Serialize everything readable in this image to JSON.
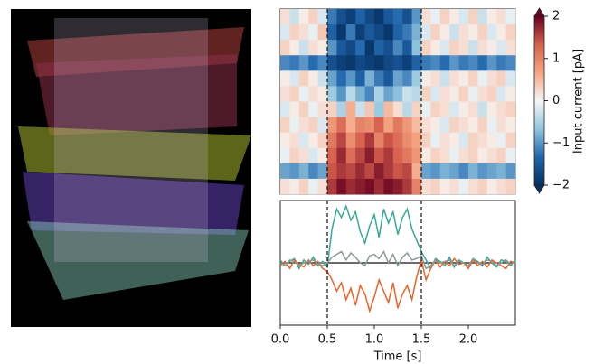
{
  "chart_data": [
    {
      "type": "heatmap",
      "xlim": [
        0,
        2.5
      ],
      "vlines": [
        0.5,
        1.5
      ],
      "cmap": [
        "#053061",
        "#2166ac",
        "#92c5de",
        "#f7f7f7",
        "#f4a582",
        "#d6604d",
        "#67001f"
      ],
      "clim": [
        -2,
        2
      ],
      "cticks": [
        {
          "value": -2,
          "label": "−2"
        },
        {
          "value": -1,
          "label": "−1"
        },
        0,
        1,
        2
      ],
      "clabel": "Input current [pA]",
      "z": [
        [
          0.2,
          -0.3,
          0.1,
          0.3,
          -0.2,
          -1.2,
          -1.6,
          -1.8,
          -1.4,
          -1.7,
          -1.9,
          -1.5,
          -1.3,
          -1.6,
          -1.0,
          0.2,
          -0.1,
          0.3,
          0.1,
          -0.2,
          0.3,
          -0.3,
          0.1,
          0.2,
          -0.1
        ],
        [
          -0.2,
          0.3,
          0.2,
          -0.1,
          0.4,
          -1.4,
          -1.9,
          -1.2,
          -1.8,
          -1.5,
          -1.7,
          -1.9,
          -1.4,
          -1.2,
          -0.8,
          -0.2,
          0.3,
          0.1,
          -0.3,
          0.2,
          0.1,
          0.3,
          -0.2,
          0.1,
          0.3
        ],
        [
          0.3,
          0.1,
          -0.3,
          0.2,
          0.1,
          -1.0,
          -1.5,
          -1.7,
          -1.3,
          -1.9,
          -1.4,
          -1.6,
          -1.1,
          -1.5,
          -0.7,
          0.3,
          0.1,
          -0.2,
          0.3,
          0.2,
          -0.3,
          0.2,
          0.1,
          -0.2,
          0.2
        ],
        [
          -1.1,
          -1.2,
          -1.0,
          -1.3,
          -1.1,
          -1.6,
          -1.8,
          -1.9,
          -1.7,
          -1.8,
          -1.9,
          -1.7,
          -1.6,
          -1.8,
          -1.4,
          -1.2,
          -1.1,
          -1.3,
          -1.0,
          -1.2,
          -1.1,
          -1.3,
          -1.0,
          -1.2,
          -1.1
        ],
        [
          0.1,
          -0.2,
          0.3,
          0.1,
          -0.3,
          -0.9,
          -1.3,
          -1.0,
          -1.4,
          -0.8,
          -1.2,
          -1.5,
          -0.9,
          -1.1,
          -0.6,
          0.1,
          0.2,
          -0.3,
          0.2,
          0.1,
          0.3,
          -0.1,
          0.2,
          0.3,
          -0.2
        ],
        [
          0.2,
          0.3,
          -0.1,
          0.2,
          0.1,
          -0.6,
          -1.0,
          -0.4,
          -0.8,
          -1.1,
          -0.5,
          -0.9,
          -0.7,
          -0.3,
          -0.4,
          0.3,
          -0.2,
          0.2,
          0.1,
          0.3,
          -0.1,
          0.2,
          0.3,
          -0.2,
          0.1
        ],
        [
          -0.2,
          0.1,
          0.3,
          -0.1,
          0.2,
          0.3,
          -0.5,
          0.6,
          -0.3,
          0.4,
          -0.6,
          0.5,
          0.2,
          -0.4,
          0.3,
          -0.1,
          0.3,
          0.2,
          -0.2,
          0.1,
          0.2,
          -0.3,
          0.1,
          0.2,
          0.3
        ],
        [
          0.3,
          -0.1,
          0.2,
          0.3,
          -0.2,
          0.8,
          1.2,
          0.6,
          1.0,
          0.9,
          1.3,
          0.7,
          1.1,
          0.8,
          0.5,
          0.2,
          0.1,
          -0.2,
          0.3,
          0.2,
          0.1,
          0.3,
          -0.1,
          0.2,
          0.1
        ],
        [
          0.1,
          0.2,
          -0.2,
          0.1,
          0.3,
          1.1,
          1.5,
          0.9,
          1.3,
          1.6,
          1.0,
          1.4,
          1.2,
          0.9,
          0.7,
          0.3,
          -0.1,
          0.2,
          0.1,
          -0.2,
          0.3,
          0.2,
          0.1,
          -0.1,
          0.3
        ],
        [
          -0.1,
          0.3,
          0.2,
          -0.2,
          0.1,
          1.3,
          1.7,
          1.2,
          1.5,
          1.8,
          1.4,
          1.6,
          1.3,
          1.1,
          0.8,
          0.1,
          0.3,
          0.2,
          -0.1,
          0.2,
          0.3,
          0.1,
          0.2,
          0.3,
          -0.1
        ],
        [
          -0.9,
          -1.0,
          -0.8,
          -1.1,
          -0.9,
          1.4,
          1.6,
          1.5,
          1.7,
          1.5,
          1.8,
          1.6,
          1.4,
          1.5,
          0.6,
          -0.9,
          -1.0,
          -0.8,
          -0.9,
          -1.1,
          -0.8,
          -1.0,
          -0.9,
          -0.8,
          -1.0
        ],
        [
          0.2,
          0.1,
          0.3,
          -0.1,
          0.2,
          1.6,
          1.9,
          1.7,
          1.8,
          1.9,
          1.7,
          1.9,
          1.8,
          1.6,
          1.0,
          0.2,
          0.3,
          0.1,
          0.2,
          -0.1,
          0.2,
          0.3,
          0.1,
          0.2,
          0.3
        ]
      ]
    },
    {
      "type": "line",
      "xlabel": "Time [s]",
      "xlim": [
        0,
        2.5
      ],
      "ylim": [
        -2.2,
        2.2
      ],
      "xticks": [
        {
          "value": 0,
          "label": "0.0"
        },
        0.5,
        {
          "value": 1,
          "label": "1.0"
        },
        1.5,
        {
          "value": 2,
          "label": "2.0"
        }
      ],
      "vlines": [
        0.5,
        1.5
      ],
      "hline": 0,
      "x": [
        0,
        0.05,
        0.1,
        0.15,
        0.2,
        0.25,
        0.3,
        0.35,
        0.4,
        0.45,
        0.5,
        0.55,
        0.6,
        0.65,
        0.7,
        0.75,
        0.8,
        0.85,
        0.9,
        0.95,
        1.0,
        1.05,
        1.1,
        1.15,
        1.2,
        1.25,
        1.3,
        1.35,
        1.4,
        1.45,
        1.5,
        1.55,
        1.6,
        1.65,
        1.7,
        1.75,
        1.8,
        1.85,
        1.9,
        1.95,
        2.0,
        2.05,
        2.1,
        2.15,
        2.2,
        2.25,
        2.3,
        2.35,
        2.4,
        2.45,
        2.5
      ],
      "series": [
        {
          "color": "#3aa898",
          "values": [
            0.1,
            -0.1,
            0.05,
            0.15,
            -0.2,
            0.1,
            -0.05,
            0.2,
            -0.1,
            0.05,
            -0.15,
            1.2,
            1.9,
            1.6,
            2.0,
            1.5,
            1.8,
            1.1,
            0.7,
            1.3,
            1.7,
            0.9,
            1.9,
            1.4,
            1.8,
            1.0,
            1.6,
            1.9,
            1.2,
            0.8,
            0.4,
            0.1,
            -0.2,
            0.15,
            0.05,
            -0.1,
            0.2,
            -0.15,
            0.1,
            0.0,
            -0.2,
            0.15,
            0.05,
            -0.1,
            0.2,
            0.0,
            -0.15,
            0.1,
            0.05,
            -0.1,
            0.1
          ]
        },
        {
          "color": "#e8642c",
          "values": [
            -0.1,
            0.05,
            -0.2,
            0.1,
            -0.05,
            -0.15,
            0.1,
            -0.1,
            0.05,
            -0.2,
            -0.3,
            -0.6,
            -1.0,
            -0.7,
            -1.3,
            -0.9,
            -1.5,
            -0.8,
            -1.1,
            -1.7,
            -1.2,
            -0.6,
            -1.0,
            -1.4,
            -0.7,
            -1.6,
            -1.1,
            -0.8,
            -1.3,
            -0.5,
            0.1,
            -0.6,
            -0.2,
            0.1,
            -0.15,
            0.05,
            -0.1,
            0.15,
            -0.05,
            0.0,
            -0.2,
            0.1,
            -0.1,
            0.05,
            -0.15,
            0.1,
            0.0,
            -0.1,
            -0.2,
            0.05,
            0.0
          ]
        },
        {
          "color": "#8a9a94",
          "values": [
            0.0,
            -0.1,
            0.1,
            0.05,
            -0.1,
            0.0,
            0.05,
            0.1,
            -0.05,
            -0.1,
            0.0,
            0.2,
            0.3,
            0.4,
            0.1,
            0.35,
            0.2,
            0.0,
            -0.1,
            0.25,
            0.3,
            0.15,
            0.4,
            0.0,
            0.3,
            -0.1,
            0.2,
            0.35,
            0.1,
            0.15,
            0.25,
            -0.2,
            -0.1,
            0.1,
            0.0,
            0.05,
            0.1,
            -0.1,
            0.05,
            0.0,
            -0.1,
            0.15,
            0.0,
            -0.05,
            0.1,
            0.05,
            -0.1,
            0.0,
            0.1,
            -0.05,
            0.05
          ]
        }
      ]
    }
  ]
}
